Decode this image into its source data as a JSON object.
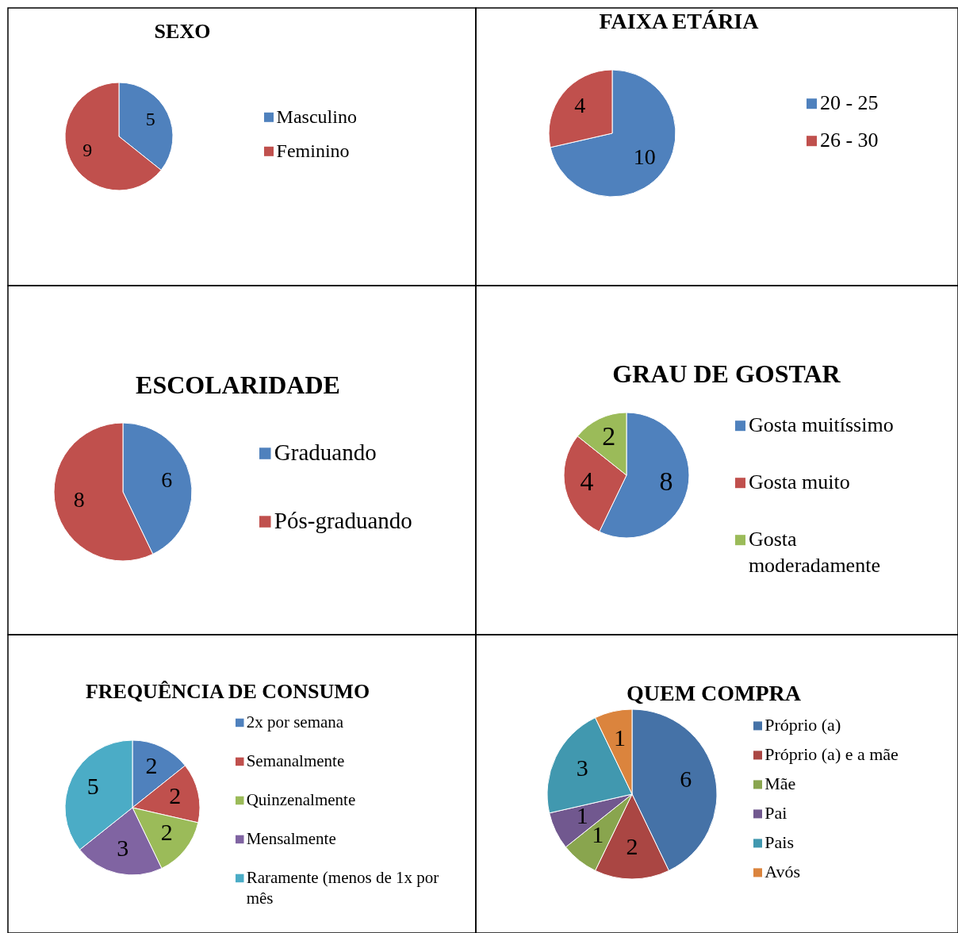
{
  "chart_data": [
    {
      "type": "pie",
      "title": "SEXO",
      "categories": [
        "Masculino",
        "Feminino"
      ],
      "values": [
        5,
        9
      ],
      "colors": [
        "#4f81bd",
        "#c0504d"
      ],
      "data_labels": true,
      "legend": "right"
    },
    {
      "type": "pie",
      "title": "FAIXA ETÁRIA",
      "categories": [
        "20 - 25",
        "26 - 30"
      ],
      "values": [
        10,
        4
      ],
      "colors": [
        "#4f81bd",
        "#c0504d"
      ],
      "data_labels": true,
      "legend": "right"
    },
    {
      "type": "pie",
      "title": "ESCOLARIDADE",
      "categories": [
        "Graduando",
        "Pós-graduando"
      ],
      "values": [
        6,
        8
      ],
      "colors": [
        "#4f81bd",
        "#c0504d"
      ],
      "data_labels": true,
      "legend": "right"
    },
    {
      "type": "pie",
      "title": "GRAU DE GOSTAR",
      "categories": [
        "Gosta muitíssimo",
        "Gosta muito",
        "Gosta moderadamente"
      ],
      "values": [
        8,
        4,
        2
      ],
      "colors": [
        "#4f81bd",
        "#c0504d",
        "#9bbb59"
      ],
      "data_labels": true,
      "legend": "right"
    },
    {
      "type": "pie",
      "title": "FREQUÊNCIA DE CONSUMO",
      "categories": [
        "2x por semana",
        "Semanalmente",
        "Quinzenalmente",
        "Mensalmente",
        "Raramente (menos de 1x por mês"
      ],
      "values": [
        2,
        2,
        2,
        3,
        5
      ],
      "colors": [
        "#4f81bd",
        "#c0504d",
        "#9bbb59",
        "#8064a2",
        "#4bacc6"
      ],
      "data_labels": true,
      "legend": "right"
    },
    {
      "type": "pie",
      "title": "QUEM COMPRA",
      "categories": [
        "Próprio (a)",
        "Próprio (a) e a mãe",
        "Mãe",
        "Pai",
        "Pais",
        "Avós"
      ],
      "values": [
        6,
        2,
        1,
        1,
        3,
        1
      ],
      "colors": [
        "#4572a7",
        "#aa4643",
        "#89a54e",
        "#71588f",
        "#4198af",
        "#db843d"
      ],
      "data_labels": true,
      "legend": "right"
    }
  ]
}
